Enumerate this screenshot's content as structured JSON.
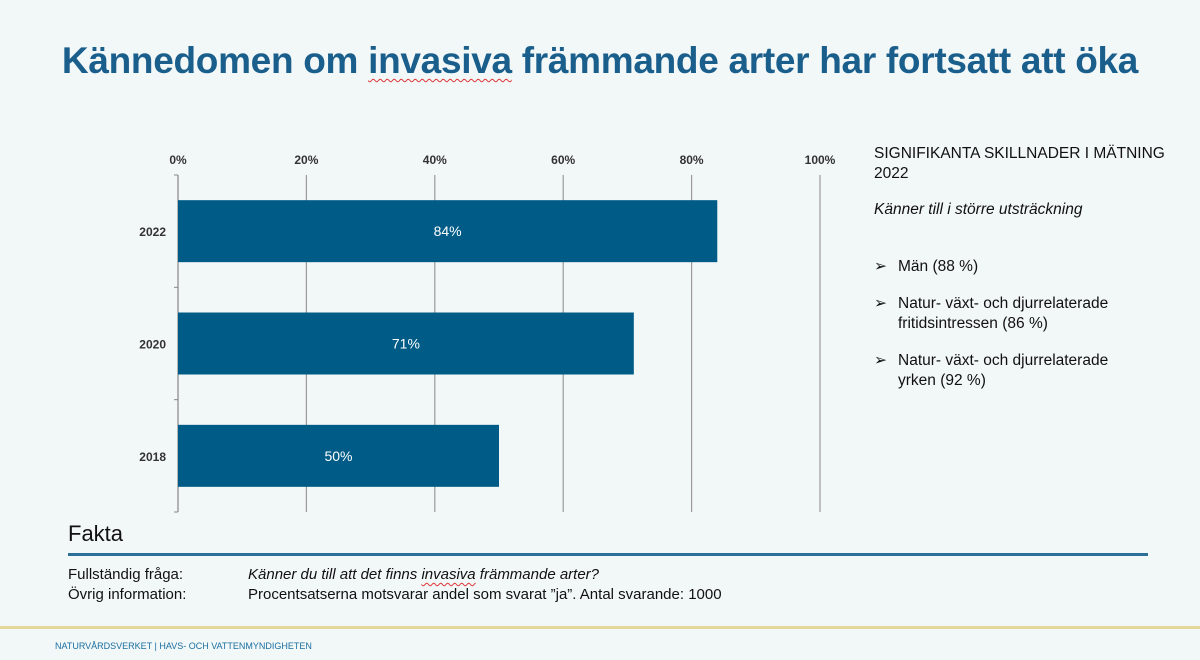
{
  "title_parts": {
    "before": "Kännedomen om ",
    "marked": "invasiva",
    "after": " främmande arter har fortsatt att öka"
  },
  "chart_data": {
    "type": "bar",
    "orientation": "horizontal",
    "categories": [
      "2022",
      "2020",
      "2018"
    ],
    "values": [
      84,
      71,
      50
    ],
    "data_labels": [
      "84%",
      "71%",
      "50%"
    ],
    "xlim": [
      0,
      100
    ],
    "x_ticks": [
      "0%",
      "20%",
      "40%",
      "60%",
      "80%",
      "100%"
    ],
    "x_axis_position": "top",
    "grid": true,
    "bar_color": "#005c87"
  },
  "side": {
    "heading": "SIGNIFIKANTA SKILLNADER I MÄTNING 2022",
    "subheading": "Känner till i större utsträckning",
    "bullet_icon": "arrowhead-bullet",
    "items": [
      {
        "line1": "Män (88 %)",
        "line2": ""
      },
      {
        "line1": " Natur- växt- och djurrelaterade",
        "line2": "fritidsintressen (86 %)"
      },
      {
        "line1": "Natur- växt- och djurrelaterade",
        "line2": "yrken (92 %)"
      }
    ]
  },
  "fakta": {
    "heading": "Fakta",
    "rows": [
      {
        "label": "Fullständig fråga:",
        "before": "Känner du till att det finns ",
        "marked": "invasiva",
        "after": " främmande arter?"
      },
      {
        "label": "Övrig information:",
        "value": "Procentsatserna motsvarar andel som svarat ”ja”. Antal svarande: 1000"
      }
    ]
  },
  "footer": "NATURVÅRDSVERKET | HAVS- OCH VATTENMYNDIGHETEN"
}
